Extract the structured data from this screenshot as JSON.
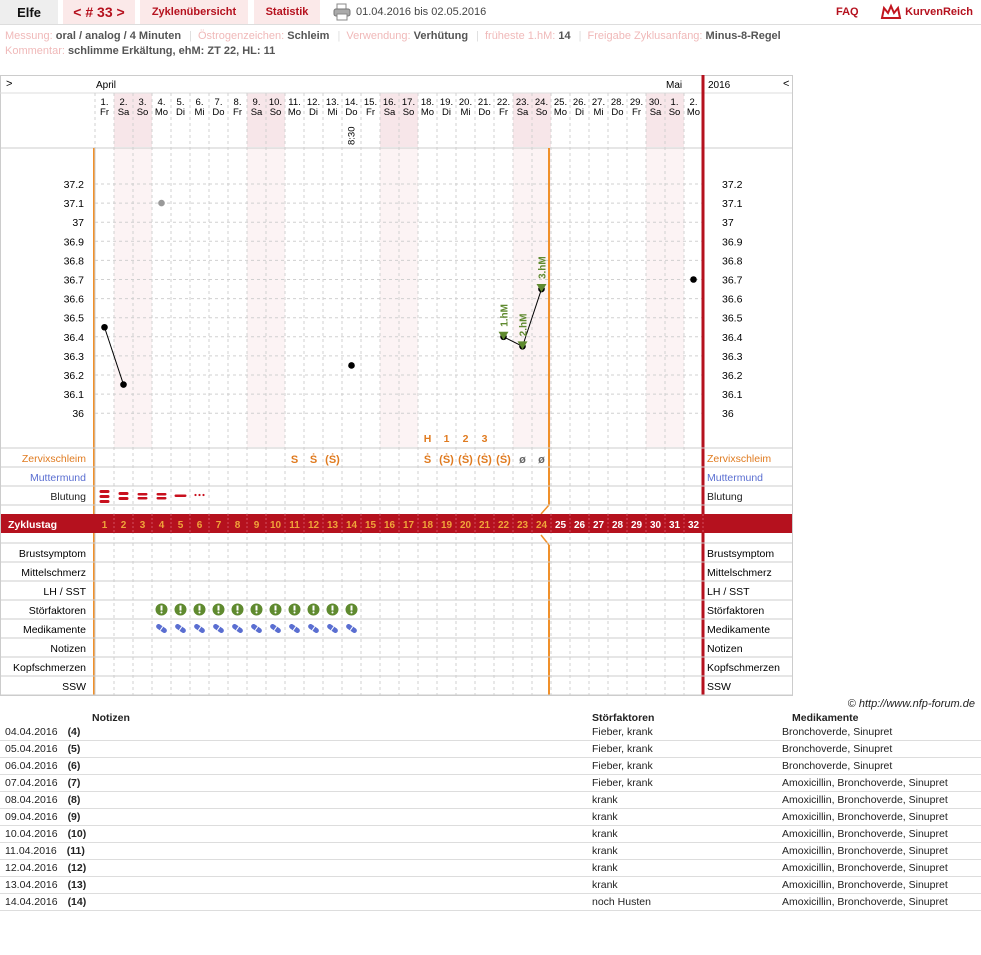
{
  "app": {
    "user": "Elfe",
    "cycle_nav": "< # 33 >",
    "tab_overview": "Zyklenübersicht",
    "tab_stats": "Statistik",
    "date_range": "01.04.2016 bis 02.05.2016",
    "faq": "FAQ",
    "brand": "KurvenReich"
  },
  "meta": {
    "messung_label": "Messung:",
    "messung_value": "oral / analog / 4 Minuten",
    "oestrogen_label": "Östrogenzeichen:",
    "oestrogen_value": "Schleim",
    "verwendung_label": "Verwendung:",
    "verwendung_value": "Verhütung",
    "hm_label": "früheste 1.hM:",
    "hm_value": "14",
    "freigabe_label": "Freigabe Zyklusanfang:",
    "freigabe_value": "Minus-8-Regel",
    "kommentar_label": "Kommentar:",
    "kommentar_value": "schlimme Erkältung, ehM: ZT 22, HL: 11"
  },
  "chart_data": {
    "type": "line",
    "scroll_left": ">",
    "scroll_right": "<",
    "month_start": "April",
    "month_end": "Mai",
    "year": "2016",
    "days": [
      {
        "d": "1.",
        "w": "Fr"
      },
      {
        "d": "2.",
        "w": "Sa"
      },
      {
        "d": "3.",
        "w": "So"
      },
      {
        "d": "4.",
        "w": "Mo"
      },
      {
        "d": "5.",
        "w": "Di"
      },
      {
        "d": "6.",
        "w": "Mi"
      },
      {
        "d": "7.",
        "w": "Do"
      },
      {
        "d": "8.",
        "w": "Fr"
      },
      {
        "d": "9.",
        "w": "Sa"
      },
      {
        "d": "10.",
        "w": "So"
      },
      {
        "d": "11.",
        "w": "Mo"
      },
      {
        "d": "12.",
        "w": "Di"
      },
      {
        "d": "13.",
        "w": "Mi"
      },
      {
        "d": "14.",
        "w": "Do"
      },
      {
        "d": "15.",
        "w": "Fr"
      },
      {
        "d": "16.",
        "w": "Sa"
      },
      {
        "d": "17.",
        "w": "So"
      },
      {
        "d": "18.",
        "w": "Mo"
      },
      {
        "d": "19.",
        "w": "Di"
      },
      {
        "d": "20.",
        "w": "Mi"
      },
      {
        "d": "21.",
        "w": "Do"
      },
      {
        "d": "22.",
        "w": "Fr"
      },
      {
        "d": "23.",
        "w": "Sa"
      },
      {
        "d": "24.",
        "w": "So"
      },
      {
        "d": "25.",
        "w": "Mo"
      },
      {
        "d": "26.",
        "w": "Di"
      },
      {
        "d": "27.",
        "w": "Mi"
      },
      {
        "d": "28.",
        "w": "Do"
      },
      {
        "d": "29.",
        "w": "Fr"
      },
      {
        "d": "30.",
        "w": "Sa"
      },
      {
        "d": "1.",
        "w": "So"
      },
      {
        "d": "2.",
        "w": "Mo"
      }
    ],
    "weekend_days": [
      2,
      3,
      9,
      10,
      16,
      17,
      23,
      24,
      30,
      31
    ],
    "time_notes": [
      {
        "day": 14,
        "text": "8:30"
      }
    ],
    "y_ticks": [
      "37.2",
      "37.1",
      "37",
      "36.9",
      "36.8",
      "36.7",
      "36.6",
      "36.5",
      "36.4",
      "36.3",
      "36.2",
      "36.1",
      "36"
    ],
    "ylim": [
      36.0,
      37.2
    ],
    "temperatures": [
      {
        "day": 1,
        "temp": 36.45
      },
      {
        "day": 2,
        "temp": 36.15
      },
      {
        "day": 4,
        "temp": 37.1,
        "excluded": true
      },
      {
        "day": 14,
        "temp": 36.25
      },
      {
        "day": 22,
        "temp": 36.4
      },
      {
        "day": 23,
        "temp": 36.35
      },
      {
        "day": 24,
        "temp": 36.65
      },
      {
        "day": 32,
        "temp": 36.7
      }
    ],
    "hm_markers": [
      {
        "day": 22,
        "label": "1.hM"
      },
      {
        "day": 23,
        "label": "2.hM"
      },
      {
        "day": 24,
        "label": "3.hM"
      }
    ],
    "mucus_peak_labels": [
      {
        "day": 18,
        "label": "H"
      },
      {
        "day": 19,
        "label": "1"
      },
      {
        "day": 20,
        "label": "2"
      },
      {
        "day": 21,
        "label": "3"
      }
    ],
    "mucus": [
      {
        "day": 11,
        "sym": "S"
      },
      {
        "day": 12,
        "sym": "Ṡ"
      },
      {
        "day": 13,
        "sym": "(Ṡ)"
      },
      {
        "day": 18,
        "sym": "Ṡ"
      },
      {
        "day": 19,
        "sym": "(Ṡ)"
      },
      {
        "day": 20,
        "sym": "(Ṡ)"
      },
      {
        "day": 21,
        "sym": "(Ṡ)"
      },
      {
        "day": 22,
        "sym": "(Ṡ)"
      },
      {
        "day": 23,
        "sym": "ø"
      },
      {
        "day": 24,
        "sym": "ø"
      }
    ],
    "bleeding": [
      {
        "day": 1,
        "level": 4
      },
      {
        "day": 2,
        "level": 3
      },
      {
        "day": 3,
        "level": 2
      },
      {
        "day": 4,
        "level": 2
      },
      {
        "day": 5,
        "level": 1
      },
      {
        "day": 6,
        "level": 0
      }
    ],
    "disturbances_days": [
      4,
      5,
      6,
      7,
      8,
      9,
      10,
      11,
      12,
      13,
      14
    ],
    "medication_days": [
      4,
      5,
      6,
      7,
      8,
      9,
      10,
      11,
      12,
      13,
      14
    ],
    "rows_top": [
      "Zervixschleim",
      "Muttermund",
      "Blutung"
    ],
    "cycle_row_label": "Zyklustag",
    "rows_bottom": [
      "Brustsymptom",
      "Mittelschmerz",
      "LH / SST",
      "Störfaktoren",
      "Medikamente",
      "Notizen",
      "Kopfschmerzen",
      "SSW"
    ],
    "colors": {
      "accent": "#b5111e",
      "orange": "#f0902a",
      "mucus": "#e07b20",
      "muttermund": "#5a6ed1",
      "green": "#5f8a2f",
      "grid": "#bbbbbb"
    }
  },
  "copyright": "© http://www.nfp-forum.de",
  "notes_table": {
    "headers": [
      "Notizen",
      "Störfaktoren",
      "Medikamente"
    ],
    "rows": [
      {
        "date": "04.04.2016",
        "zt": "(4)",
        "stoer": "Fieber, krank",
        "med": "Bronchoverde, Sinupret"
      },
      {
        "date": "05.04.2016",
        "zt": "(5)",
        "stoer": "Fieber, krank",
        "med": "Bronchoverde, Sinupret"
      },
      {
        "date": "06.04.2016",
        "zt": "(6)",
        "stoer": "Fieber, krank",
        "med": "Bronchoverde, Sinupret"
      },
      {
        "date": "07.04.2016",
        "zt": "(7)",
        "stoer": "Fieber, krank",
        "med": "Amoxicillin, Bronchoverde, Sinupret"
      },
      {
        "date": "08.04.2016",
        "zt": "(8)",
        "stoer": "krank",
        "med": "Amoxicillin, Bronchoverde, Sinupret"
      },
      {
        "date": "09.04.2016",
        "zt": "(9)",
        "stoer": "krank",
        "med": "Amoxicillin, Bronchoverde, Sinupret"
      },
      {
        "date": "10.04.2016",
        "zt": "(10)",
        "stoer": "krank",
        "med": "Amoxicillin, Bronchoverde, Sinupret"
      },
      {
        "date": "11.04.2016",
        "zt": "(11)",
        "stoer": "krank",
        "med": "Amoxicillin, Bronchoverde, Sinupret"
      },
      {
        "date": "12.04.2016",
        "zt": "(12)",
        "stoer": "krank",
        "med": "Amoxicillin, Bronchoverde, Sinupret"
      },
      {
        "date": "13.04.2016",
        "zt": "(13)",
        "stoer": "krank",
        "med": "Amoxicillin, Bronchoverde, Sinupret"
      },
      {
        "date": "14.04.2016",
        "zt": "(14)",
        "stoer": "noch Husten",
        "med": "Amoxicillin, Bronchoverde, Sinupret"
      }
    ]
  }
}
